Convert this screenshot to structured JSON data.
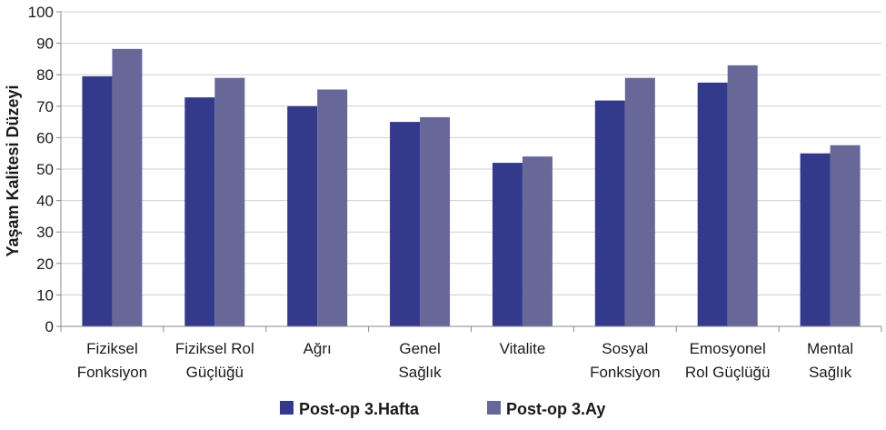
{
  "chart_data": {
    "type": "bar",
    "title": "",
    "xlabel": "",
    "ylabel": "Yaşam Kalitesi Düzeyi",
    "ylim": [
      0,
      100
    ],
    "yticks": [
      0,
      10,
      20,
      30,
      40,
      50,
      60,
      70,
      80,
      90,
      100
    ],
    "grid": true,
    "legend_position": "bottom",
    "categories": [
      [
        "Fiziksel",
        "Fonksiyon"
      ],
      [
        "Fiziksel Rol",
        "Güçlüğü"
      ],
      [
        "Ağrı"
      ],
      [
        "Genel",
        "Sağlık"
      ],
      [
        "Vitalite"
      ],
      [
        "Sosyal",
        "Fonksiyon"
      ],
      [
        "Emosyonel",
        "Rol Güçlüğü"
      ],
      [
        "Mental",
        "Sağlık"
      ]
    ],
    "series": [
      {
        "name": "Post-op 3.Hafta",
        "color": "#333a8c",
        "values": [
          79.5,
          72.8,
          70,
          65,
          52,
          71.8,
          77.5,
          55
        ]
      },
      {
        "name": "Post-op 3.Ay",
        "color": "#676798",
        "values": [
          88.2,
          79,
          75.3,
          66.5,
          54,
          79,
          83,
          57.6
        ]
      }
    ]
  }
}
